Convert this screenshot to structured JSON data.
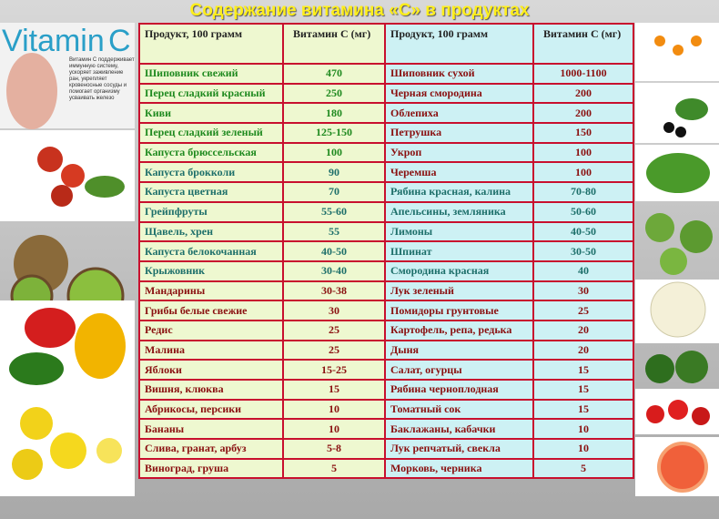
{
  "title": "Содержание витамина «С» в продуктах",
  "sidebar": {
    "logo_word": "Vitamin",
    "logo_letter": "C",
    "text": "Витамин С поддерживает иммунную систему, ускоряет заживление ран, укрепляет кровеносные сосуды и помогает организму усваивать железо"
  },
  "table": {
    "header": [
      "Продукт, 100 грамм",
      "Витамин С (мг)",
      "Продукт, 100 грамм",
      "Витамин С (мг)"
    ],
    "rows": [
      [
        "Шиповник свежий",
        470,
        "Шиповник сухой",
        "1000-1100"
      ],
      [
        "Перец сладкий красный",
        250,
        "Черная смородина",
        200
      ],
      [
        "Киви",
        180,
        "Облепиха",
        200
      ],
      [
        "Перец сладкий зеленый",
        "125-150",
        "Петрушка",
        150
      ],
      [
        "Капуста брюссельская",
        100,
        "Укроп",
        100
      ],
      [
        "Капуста брокколи",
        90,
        "Черемша",
        100
      ],
      [
        "Капуста цветная",
        70,
        "Рябина красная, калина",
        "70-80"
      ],
      [
        "Грейпфруты",
        "55-60",
        "Апельсины, земляника",
        "50-60"
      ],
      [
        "Щавель, хрен",
        55,
        "Лимоны",
        "40-50"
      ],
      [
        "Капуста белокочанная",
        "40-50",
        "Шпинат",
        "30-50"
      ],
      [
        "Крыжовник",
        "30-40",
        "Смородина красная",
        40
      ],
      [
        "Мандарины",
        "30-38",
        "Лук зеленый",
        30
      ],
      [
        "Грибы белые свежие",
        30,
        "Помидоры грунтовые",
        25
      ],
      [
        "Редис",
        25,
        "Картофель, репа, редька",
        20
      ],
      [
        "Малина",
        25,
        "Дыня",
        20
      ],
      [
        "Яблоки",
        "15-25",
        "Салат, огурцы",
        15
      ],
      [
        "Вишня, клюква",
        15,
        "Рябина черноплодная",
        15
      ],
      [
        "Абрикосы, персики",
        10,
        "Томатный сок",
        15
      ],
      [
        "Бананы",
        10,
        "Баклажаны, кабачки",
        10
      ],
      [
        "Слива, гранат, арбуз",
        "5-8",
        "Лук репчатый, свекла",
        10
      ],
      [
        "Виноград, груша",
        5,
        "Морковь, черника",
        5
      ]
    ]
  }
}
